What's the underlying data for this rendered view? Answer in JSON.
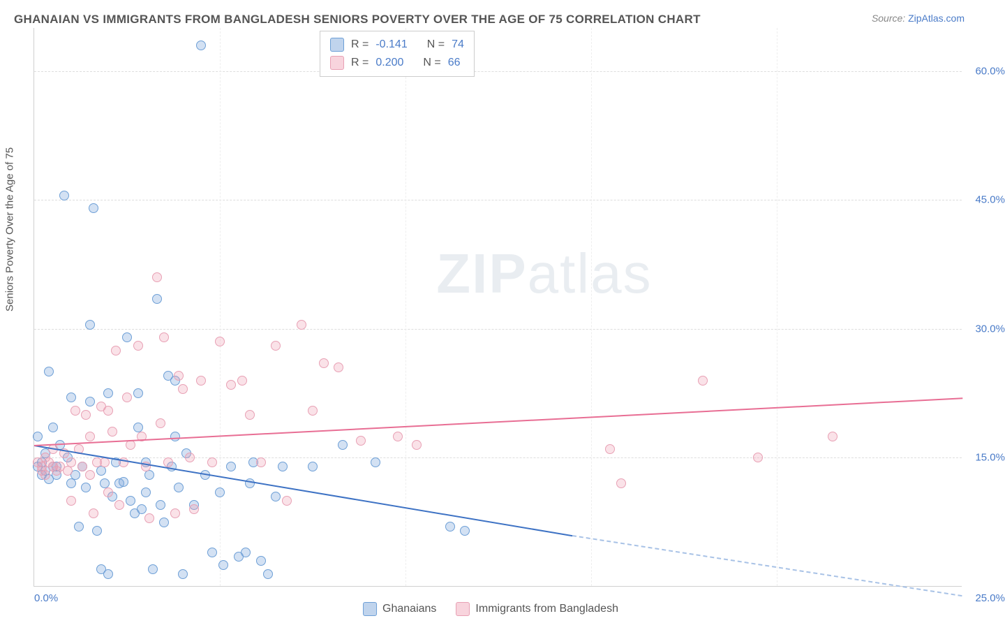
{
  "title": "GHANAIAN VS IMMIGRANTS FROM BANGLADESH SENIORS POVERTY OVER THE AGE OF 75 CORRELATION CHART",
  "source_label": "Source:",
  "source_value": "ZipAtlas.com",
  "ylabel": "Seniors Poverty Over the Age of 75",
  "watermark_bold": "ZIP",
  "watermark_rest": "atlas",
  "chart": {
    "type": "scatter",
    "xlim": [
      0,
      25
    ],
    "ylim": [
      0,
      65
    ],
    "xticks": [
      0,
      25
    ],
    "xtick_labels": [
      "0.0%",
      "25.0%"
    ],
    "yticks": [
      15,
      30,
      45,
      60
    ],
    "ytick_labels": [
      "15.0%",
      "30.0%",
      "45.0%",
      "60.0%"
    ],
    "background_color": "#ffffff",
    "grid_color": "#dddddd",
    "axis_color": "#d0d0d0",
    "marker_size": 14,
    "series": [
      {
        "name": "Ghanaians",
        "color_fill": "rgba(130,170,220,0.35)",
        "color_stroke": "#6d9fd6",
        "trend_color": "#3d72c4",
        "R": "-0.141",
        "N": "74",
        "trend": {
          "x1": 0,
          "y1": 16.5,
          "x2": 14.5,
          "y2": 6.0,
          "dash_x2": 25,
          "dash_y2": -1.0
        },
        "points": [
          [
            0.1,
            17.5
          ],
          [
            0.1,
            14.0
          ],
          [
            0.2,
            13.0
          ],
          [
            0.2,
            14.5
          ],
          [
            0.3,
            13.5
          ],
          [
            0.3,
            15.5
          ],
          [
            0.4,
            12.5
          ],
          [
            0.4,
            25.0
          ],
          [
            0.5,
            14.0
          ],
          [
            0.5,
            18.5
          ],
          [
            0.6,
            14.0
          ],
          [
            0.6,
            13.0
          ],
          [
            0.7,
            16.5
          ],
          [
            0.8,
            45.5
          ],
          [
            0.9,
            15.0
          ],
          [
            1.0,
            12.0
          ],
          [
            1.0,
            22.0
          ],
          [
            1.1,
            13.0
          ],
          [
            1.2,
            7.0
          ],
          [
            1.3,
            14.0
          ],
          [
            1.4,
            11.5
          ],
          [
            1.5,
            21.5
          ],
          [
            1.5,
            30.5
          ],
          [
            1.6,
            44.0
          ],
          [
            1.7,
            6.5
          ],
          [
            1.8,
            13.5
          ],
          [
            1.8,
            2.0
          ],
          [
            1.9,
            12.0
          ],
          [
            2.0,
            22.5
          ],
          [
            2.0,
            1.5
          ],
          [
            2.1,
            10.5
          ],
          [
            2.2,
            14.5
          ],
          [
            2.3,
            12.0
          ],
          [
            2.4,
            12.2
          ],
          [
            2.5,
            29.0
          ],
          [
            2.6,
            10.0
          ],
          [
            2.7,
            8.5
          ],
          [
            2.8,
            18.5
          ],
          [
            2.8,
            22.5
          ],
          [
            2.9,
            9.0
          ],
          [
            3.0,
            14.5
          ],
          [
            3.0,
            11.0
          ],
          [
            3.1,
            13.0
          ],
          [
            3.2,
            2.0
          ],
          [
            3.3,
            33.5
          ],
          [
            3.4,
            9.5
          ],
          [
            3.5,
            7.5
          ],
          [
            3.6,
            24.5
          ],
          [
            3.7,
            14.0
          ],
          [
            3.8,
            17.5
          ],
          [
            3.8,
            24.0
          ],
          [
            3.9,
            11.5
          ],
          [
            4.0,
            1.5
          ],
          [
            4.1,
            15.5
          ],
          [
            4.3,
            9.5
          ],
          [
            4.5,
            63.0
          ],
          [
            4.6,
            13.0
          ],
          [
            4.8,
            4.0
          ],
          [
            5.0,
            11.0
          ],
          [
            5.1,
            2.5
          ],
          [
            5.3,
            14.0
          ],
          [
            5.5,
            3.5
          ],
          [
            5.7,
            4.0
          ],
          [
            5.8,
            12.0
          ],
          [
            5.9,
            14.5
          ],
          [
            6.1,
            3.0
          ],
          [
            6.3,
            1.5
          ],
          [
            6.5,
            10.5
          ],
          [
            6.7,
            14.0
          ],
          [
            7.5,
            14.0
          ],
          [
            8.3,
            16.5
          ],
          [
            9.2,
            14.5
          ],
          [
            11.2,
            7.0
          ],
          [
            11.6,
            6.5
          ]
        ]
      },
      {
        "name": "Immigrants from Bangladesh",
        "color_fill": "rgba(240,160,180,0.30)",
        "color_stroke": "#e8a0b4",
        "trend_color": "#e86e94",
        "R": "0.200",
        "N": "66",
        "trend": {
          "x1": 0,
          "y1": 16.5,
          "x2": 25,
          "y2": 22.0
        },
        "points": [
          [
            0.1,
            14.5
          ],
          [
            0.2,
            14.0
          ],
          [
            0.2,
            13.5
          ],
          [
            0.3,
            15.0
          ],
          [
            0.3,
            13.0
          ],
          [
            0.4,
            14.5
          ],
          [
            0.5,
            14.0
          ],
          [
            0.5,
            16.0
          ],
          [
            0.6,
            13.5
          ],
          [
            0.7,
            14.0
          ],
          [
            0.8,
            15.5
          ],
          [
            0.9,
            13.5
          ],
          [
            1.0,
            14.5
          ],
          [
            1.0,
            10.0
          ],
          [
            1.1,
            20.5
          ],
          [
            1.2,
            16.0
          ],
          [
            1.3,
            14.0
          ],
          [
            1.4,
            20.0
          ],
          [
            1.5,
            13.0
          ],
          [
            1.5,
            17.5
          ],
          [
            1.6,
            8.5
          ],
          [
            1.7,
            14.5
          ],
          [
            1.8,
            21.0
          ],
          [
            1.9,
            14.5
          ],
          [
            2.0,
            20.5
          ],
          [
            2.0,
            11.0
          ],
          [
            2.1,
            18.0
          ],
          [
            2.2,
            27.5
          ],
          [
            2.3,
            9.5
          ],
          [
            2.4,
            14.5
          ],
          [
            2.5,
            22.0
          ],
          [
            2.6,
            16.5
          ],
          [
            2.8,
            28.0
          ],
          [
            2.9,
            17.5
          ],
          [
            3.0,
            14.0
          ],
          [
            3.1,
            8.0
          ],
          [
            3.3,
            36.0
          ],
          [
            3.4,
            19.0
          ],
          [
            3.5,
            29.0
          ],
          [
            3.6,
            14.5
          ],
          [
            3.8,
            8.5
          ],
          [
            3.9,
            24.5
          ],
          [
            4.0,
            23.0
          ],
          [
            4.2,
            15.0
          ],
          [
            4.3,
            9.0
          ],
          [
            4.5,
            24.0
          ],
          [
            4.8,
            14.5
          ],
          [
            5.0,
            28.5
          ],
          [
            5.3,
            23.5
          ],
          [
            5.6,
            24.0
          ],
          [
            5.8,
            20.0
          ],
          [
            6.1,
            14.5
          ],
          [
            6.5,
            28.0
          ],
          [
            6.8,
            10.0
          ],
          [
            7.2,
            30.5
          ],
          [
            7.5,
            20.5
          ],
          [
            7.8,
            26.0
          ],
          [
            8.2,
            25.5
          ],
          [
            8.8,
            17.0
          ],
          [
            9.8,
            17.5
          ],
          [
            10.3,
            16.5
          ],
          [
            15.5,
            16.0
          ],
          [
            15.8,
            12.0
          ],
          [
            18.0,
            24.0
          ],
          [
            19.5,
            15.0
          ],
          [
            21.5,
            17.5
          ]
        ]
      }
    ]
  },
  "legend_top": {
    "r_label": "R =",
    "n_label": "N ="
  },
  "legend_bottom": [
    {
      "label": "Ghanaians",
      "swatch": "blue"
    },
    {
      "label": "Immigrants from Bangladesh",
      "swatch": "pink"
    }
  ]
}
